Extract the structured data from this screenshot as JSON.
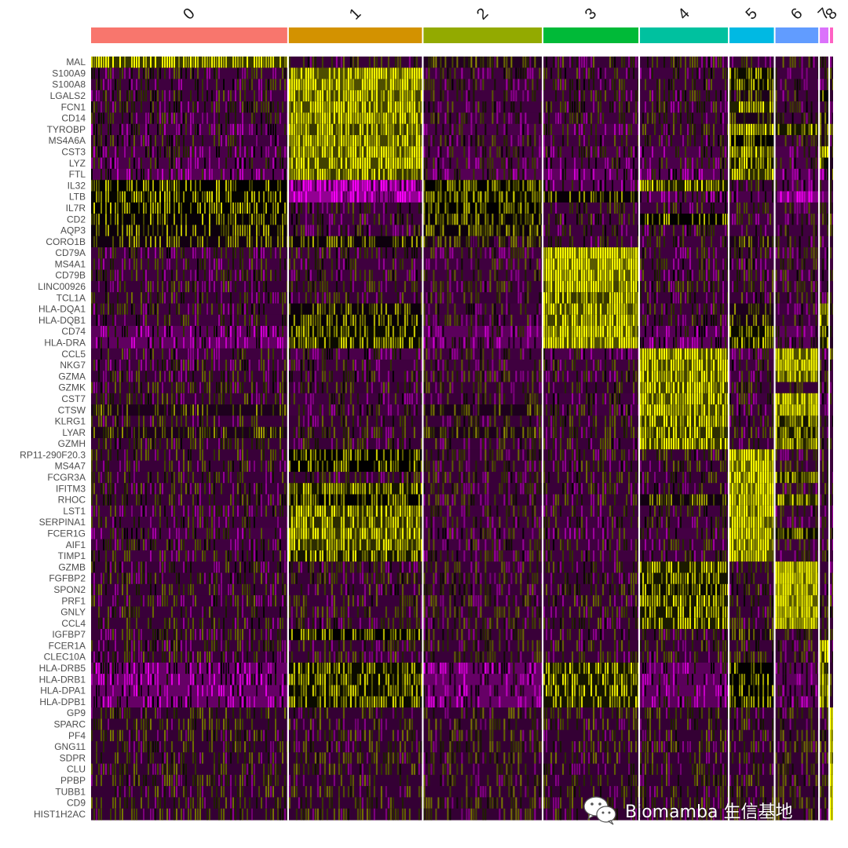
{
  "chart_data": {
    "type": "heatmap",
    "title": "",
    "xlabel": "",
    "ylabel": "",
    "clusters": [
      {
        "label": "0",
        "color": "#F8766D",
        "cells": 504
      },
      {
        "label": "1",
        "color": "#D39200",
        "cells": 342
      },
      {
        "label": "2",
        "color": "#93AA00",
        "cells": 304
      },
      {
        "label": "3",
        "color": "#00BA38",
        "cells": 244
      },
      {
        "label": "4",
        "color": "#00C19F",
        "cells": 226
      },
      {
        "label": "5",
        "color": "#00B9E3",
        "cells": 114
      },
      {
        "label": "6",
        "color": "#619CFF",
        "cells": 110
      },
      {
        "label": "7",
        "color": "#DB72FB",
        "cells": 22
      },
      {
        "label": "8",
        "color": "#FF61C3",
        "cells": 8
      }
    ],
    "genes": [
      "MAL",
      "S100A9",
      "S100A8",
      "LGALS2",
      "FCN1",
      "CD14",
      "TYROBP",
      "MS4A6A",
      "CST3",
      "LYZ",
      "FTL",
      "IL32",
      "LTB",
      "IL7R",
      "CD2",
      "AQP3",
      "CORO1B",
      "CD79A",
      "MS4A1",
      "CD79B",
      "LINC00926",
      "TCL1A",
      "HLA-DQA1",
      "HLA-DQB1",
      "CD74",
      "HLA-DRA",
      "CCL5",
      "NKG7",
      "GZMA",
      "GZMK",
      "CST7",
      "CTSW",
      "KLRG1",
      "LYAR",
      "GZMH",
      "RP11-290F20.3",
      "MS4A7",
      "FCGR3A",
      "IFITM3",
      "RHOC",
      "LST1",
      "SERPINA1",
      "FCER1G",
      "AIF1",
      "TIMP1",
      "GZMB",
      "FGFBP2",
      "SPON2",
      "PRF1",
      "GNLY",
      "CCL4",
      "IGFBP7",
      "FCER1A",
      "CLEC10A",
      "HLA-DRB5",
      "HLA-DRB1",
      "HLA-DPA1",
      "HLA-DPB1",
      "GP9",
      "SPARC",
      "PF4",
      "GNG11",
      "SDPR",
      "CLU",
      "PPBP",
      "TUBB1",
      "CD9",
      "HIST1H2AC"
    ],
    "expression_scale": {
      "low": "#FF00FF",
      "mid": "#000000",
      "high": "#FFFF00",
      "range": [
        -2.5,
        2.5
      ]
    },
    "mean_scaled_expression": [
      [
        1.8,
        -0.2,
        0.2,
        -0.2,
        -0.2,
        -0.2,
        -0.2,
        -0.4,
        -0.2
      ],
      [
        -0.3,
        2.2,
        -0.3,
        -0.3,
        -0.3,
        1.0,
        -0.3,
        -0.3,
        0.2
      ],
      [
        -0.3,
        2.2,
        -0.3,
        -0.3,
        -0.3,
        1.0,
        -0.3,
        -0.3,
        0.2
      ],
      [
        -0.3,
        2.0,
        -0.3,
        -0.3,
        -0.3,
        0.3,
        -0.3,
        0.8,
        0.0
      ],
      [
        -0.3,
        2.0,
        -0.3,
        -0.3,
        -0.3,
        1.4,
        -0.3,
        -0.3,
        0.0
      ],
      [
        -0.3,
        2.0,
        -0.3,
        -0.3,
        -0.3,
        0.3,
        -0.3,
        0.5,
        0.0
      ],
      [
        -0.5,
        1.8,
        -0.5,
        -0.5,
        -0.2,
        1.6,
        1.2,
        0.3,
        0.3
      ],
      [
        -0.3,
        2.0,
        -0.3,
        -0.3,
        -0.3,
        0.8,
        -0.3,
        0.3,
        0.0
      ],
      [
        -0.5,
        2.0,
        -0.5,
        -0.5,
        -0.5,
        1.8,
        -0.5,
        1.8,
        0.3
      ],
      [
        -0.5,
        2.0,
        -0.5,
        -0.5,
        -0.5,
        1.2,
        -0.5,
        1.0,
        0.3
      ],
      [
        -0.7,
        1.8,
        -0.7,
        -0.9,
        -0.7,
        1.6,
        -0.7,
        -1.0,
        0.3
      ],
      [
        0.8,
        -1.6,
        0.8,
        -0.6,
        1.3,
        -0.2,
        -0.6,
        -0.5,
        0.0
      ],
      [
        0.9,
        -1.8,
        1.0,
        0.7,
        -0.6,
        -0.5,
        -1.5,
        -0.9,
        -0.5
      ],
      [
        0.8,
        -0.3,
        0.8,
        -0.3,
        -0.3,
        -0.3,
        -0.3,
        -0.3,
        0.0
      ],
      [
        0.7,
        -0.3,
        0.7,
        -0.3,
        0.8,
        -0.3,
        -0.3,
        -0.3,
        0.0
      ],
      [
        0.6,
        -0.3,
        0.6,
        -0.3,
        -0.3,
        -0.3,
        -0.3,
        -0.3,
        0.0
      ],
      [
        0.5,
        0.6,
        0.3,
        -0.3,
        -0.3,
        0.3,
        -0.3,
        -0.3,
        0.0
      ],
      [
        -0.3,
        -0.3,
        -0.3,
        2.5,
        -0.3,
        -0.3,
        -0.3,
        -0.3,
        -0.3
      ],
      [
        -0.3,
        -0.3,
        -0.3,
        2.4,
        -0.3,
        -0.3,
        -0.3,
        -0.3,
        -0.3
      ],
      [
        -0.3,
        -0.3,
        -0.3,
        2.3,
        -0.3,
        -0.3,
        -0.3,
        -0.3,
        -0.3
      ],
      [
        -0.2,
        -0.2,
        -0.2,
        2.0,
        -0.2,
        -0.2,
        -0.2,
        -0.2,
        -0.2
      ],
      [
        -0.2,
        -0.2,
        -0.2,
        1.8,
        -0.2,
        -0.2,
        -0.2,
        -0.2,
        -0.2
      ],
      [
        -0.3,
        0.6,
        -0.3,
        2.0,
        -0.3,
        0.3,
        -0.3,
        1.8,
        0.0
      ],
      [
        -0.3,
        0.7,
        -0.3,
        2.0,
        -0.3,
        0.4,
        -0.3,
        1.6,
        0.0
      ],
      [
        -0.8,
        1.0,
        -0.8,
        2.2,
        -0.7,
        1.0,
        -0.8,
        1.0,
        0.0
      ],
      [
        -0.9,
        1.0,
        -0.9,
        2.2,
        -0.8,
        1.0,
        -0.8,
        1.2,
        0.2
      ],
      [
        -0.3,
        -0.5,
        -0.3,
        -0.5,
        2.2,
        -0.5,
        2.2,
        -0.5,
        0.3
      ],
      [
        -0.3,
        -0.3,
        -0.3,
        -0.3,
        2.0,
        -0.3,
        2.4,
        -0.3,
        -0.3
      ],
      [
        -0.2,
        -0.3,
        -0.2,
        -0.3,
        2.0,
        -0.3,
        2.0,
        -0.3,
        -0.3
      ],
      [
        -0.2,
        -0.2,
        -0.2,
        -0.2,
        2.0,
        -0.2,
        -0.2,
        -0.2,
        -0.2
      ],
      [
        -0.2,
        -0.3,
        -0.2,
        -0.3,
        2.0,
        -0.3,
        2.2,
        -0.3,
        -0.3
      ],
      [
        0.3,
        -0.3,
        0.3,
        -0.3,
        2.0,
        -0.3,
        2.2,
        -0.3,
        -0.3
      ],
      [
        -0.2,
        -0.2,
        -0.2,
        -0.2,
        1.8,
        -0.2,
        1.2,
        -0.2,
        -0.2
      ],
      [
        0.3,
        -0.2,
        0.3,
        -0.2,
        1.6,
        -0.2,
        1.2,
        -0.2,
        -0.2
      ],
      [
        -0.2,
        -0.2,
        -0.2,
        -0.2,
        1.8,
        -0.2,
        1.4,
        -0.2,
        -0.2
      ],
      [
        -0.2,
        0.8,
        -0.2,
        -0.2,
        -0.2,
        2.4,
        -0.2,
        -0.2,
        -0.2
      ],
      [
        -0.2,
        0.8,
        -0.2,
        -0.2,
        -0.2,
        2.4,
        -0.2,
        -0.2,
        -0.2
      ],
      [
        -0.2,
        -0.2,
        -0.2,
        -0.2,
        -0.2,
        2.4,
        1.2,
        -0.2,
        -0.2
      ],
      [
        -0.2,
        1.2,
        -0.2,
        -0.2,
        -0.2,
        2.4,
        -0.2,
        -0.2,
        -0.2
      ],
      [
        -0.2,
        0.8,
        -0.2,
        -0.2,
        0.5,
        2.2,
        1.4,
        -0.2,
        -0.2
      ],
      [
        -0.3,
        1.6,
        -0.3,
        -0.3,
        -0.3,
        2.2,
        -0.3,
        -0.3,
        -0.3
      ],
      [
        -0.3,
        1.6,
        -0.3,
        -0.3,
        -0.3,
        2.2,
        -0.3,
        -0.3,
        -0.3
      ],
      [
        -0.4,
        1.8,
        -0.4,
        -0.4,
        -0.4,
        2.2,
        1.0,
        -0.4,
        -0.2
      ],
      [
        -0.3,
        1.6,
        -0.3,
        -0.3,
        -0.3,
        2.2,
        -0.3,
        -0.3,
        -0.3
      ],
      [
        -0.3,
        1.2,
        -0.3,
        -0.3,
        -0.3,
        2.2,
        -0.3,
        -0.3,
        -0.3
      ],
      [
        -0.2,
        -0.2,
        -0.2,
        -0.2,
        1.3,
        -0.2,
        2.4,
        -0.2,
        -0.2
      ],
      [
        -0.2,
        -0.2,
        -0.2,
        -0.2,
        1.2,
        -0.2,
        2.4,
        -0.2,
        -0.2
      ],
      [
        -0.2,
        -0.2,
        -0.2,
        -0.2,
        1.0,
        -0.2,
        2.4,
        -0.2,
        -0.2
      ],
      [
        -0.2,
        -0.2,
        -0.2,
        -0.2,
        1.3,
        -0.2,
        2.4,
        -0.2,
        -0.2
      ],
      [
        -0.2,
        -0.2,
        -0.2,
        -0.2,
        1.2,
        -0.2,
        2.4,
        -0.2,
        -0.2
      ],
      [
        -0.2,
        -0.2,
        -0.2,
        -0.2,
        1.3,
        -0.2,
        2.2,
        -0.2,
        -0.2
      ],
      [
        -0.2,
        0.8,
        -0.2,
        -0.2,
        -0.2,
        0.3,
        -0.2,
        -0.2,
        -0.2
      ],
      [
        -0.2,
        -0.2,
        -0.2,
        -0.2,
        -0.2,
        -0.2,
        -0.2,
        2.2,
        -0.2
      ],
      [
        -0.2,
        -0.2,
        -0.2,
        -0.2,
        -0.2,
        -0.2,
        -0.2,
        1.8,
        -0.2
      ],
      [
        -1.0,
        1.0,
        -1.0,
        1.2,
        -0.8,
        0.8,
        -0.8,
        1.6,
        0.0
      ],
      [
        -1.0,
        1.0,
        -1.0,
        1.2,
        -0.8,
        0.8,
        -0.8,
        1.6,
        0.0
      ],
      [
        -1.0,
        1.0,
        -1.0,
        1.2,
        -0.8,
        0.8,
        -0.8,
        1.6,
        0.0
      ],
      [
        -1.0,
        1.0,
        -1.0,
        1.2,
        -0.8,
        0.8,
        -0.8,
        1.6,
        0.0
      ],
      [
        -0.1,
        -0.1,
        -0.1,
        -0.1,
        -0.1,
        -0.1,
        -0.1,
        -0.1,
        2.5
      ],
      [
        -0.1,
        -0.1,
        -0.1,
        -0.1,
        -0.1,
        -0.1,
        -0.1,
        -0.1,
        2.5
      ],
      [
        -0.1,
        -0.1,
        -0.1,
        -0.1,
        -0.1,
        -0.1,
        -0.1,
        -0.1,
        2.5
      ],
      [
        -0.1,
        -0.1,
        -0.1,
        -0.1,
        -0.1,
        -0.1,
        -0.1,
        -0.1,
        2.5
      ],
      [
        -0.1,
        -0.1,
        -0.1,
        -0.1,
        -0.1,
        -0.1,
        -0.1,
        -0.1,
        2.5
      ],
      [
        -0.1,
        -0.1,
        -0.1,
        -0.1,
        -0.1,
        -0.1,
        -0.1,
        -0.1,
        2.5
      ],
      [
        -0.1,
        -0.1,
        -0.1,
        -0.1,
        -0.1,
        -0.1,
        -0.1,
        -0.1,
        2.5
      ],
      [
        -0.1,
        -0.1,
        -0.1,
        -0.1,
        -0.1,
        -0.1,
        -0.1,
        -0.1,
        2.5
      ],
      [
        -0.1,
        -0.1,
        -0.1,
        -0.1,
        -0.1,
        -0.1,
        -0.1,
        -0.1,
        2.5
      ],
      [
        -0.1,
        -0.1,
        -0.1,
        -0.1,
        -0.1,
        -0.1,
        -0.1,
        -0.1,
        2.5
      ]
    ],
    "legend": "none"
  },
  "watermark": {
    "text": "Biomamba 生信基地",
    "icon": "wechat-icon"
  }
}
